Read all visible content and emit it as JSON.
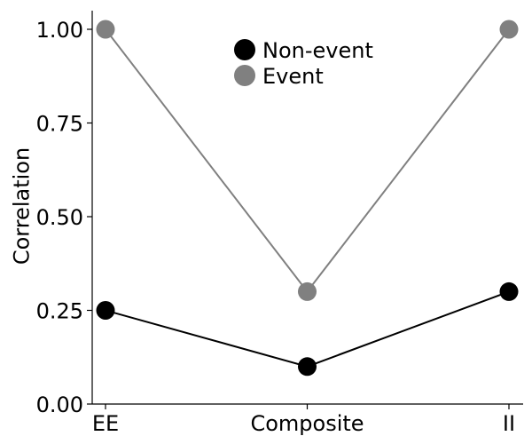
{
  "chart_data": {
    "type": "line",
    "categories": [
      "EE",
      "Composite",
      "II"
    ],
    "series": [
      {
        "name": "Non-event",
        "values": [
          0.25,
          0.1,
          0.3
        ],
        "color": "#000000"
      },
      {
        "name": "Event",
        "values": [
          1.0,
          0.3,
          1.0
        ],
        "color": "#808080"
      }
    ],
    "xlabel": "",
    "ylabel": "Correlation",
    "ylim": [
      0.0,
      1.05
    ],
    "yticks": [
      "0.00",
      "0.25",
      "0.50",
      "0.75",
      "1.00"
    ],
    "grid": false,
    "legend_position": "top-center"
  }
}
